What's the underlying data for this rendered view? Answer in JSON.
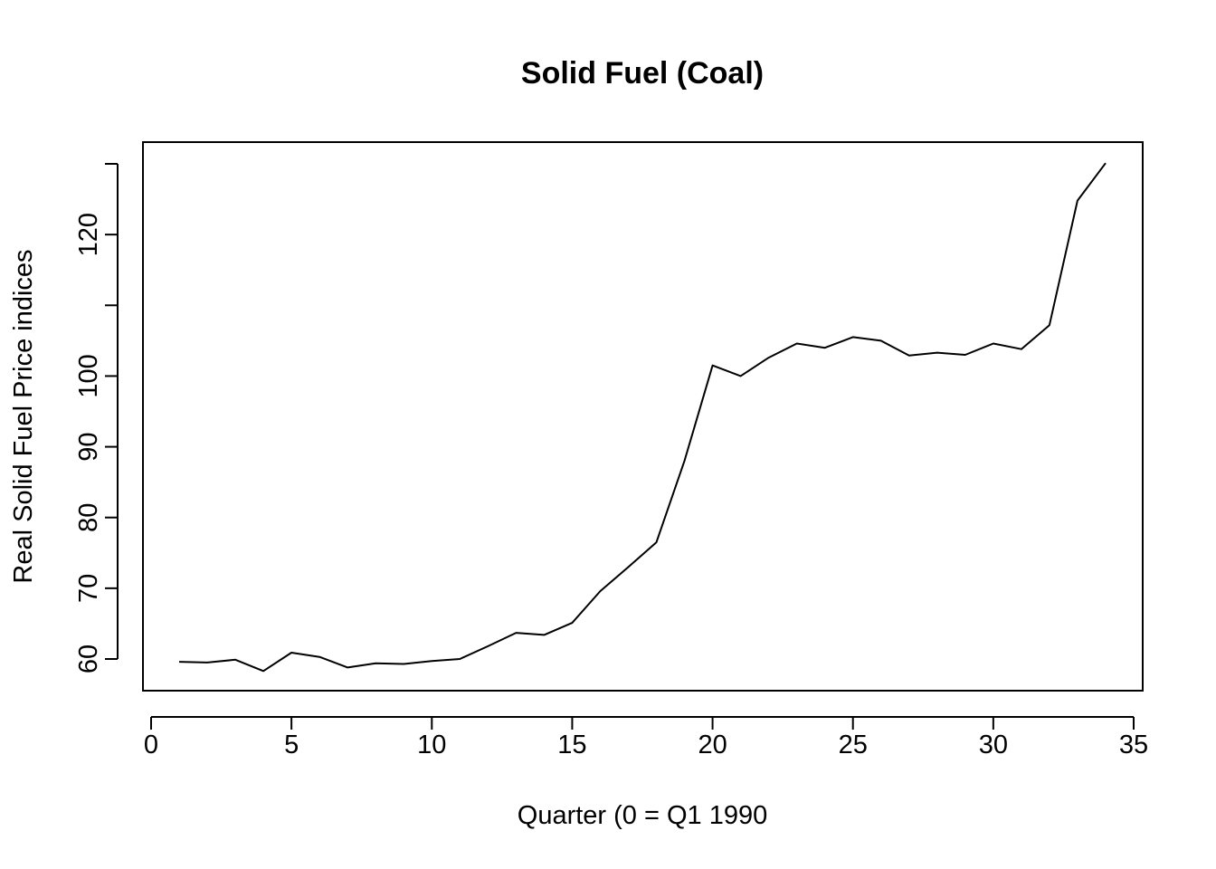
{
  "chart_data": {
    "type": "line",
    "title": "Solid Fuel (Coal)",
    "xlabel": "Quarter (0 = Q1 1990",
    "ylabel": "Real Solid Fuel Price indices",
    "xlim": [
      0,
      35
    ],
    "ylim": [
      55.5,
      133
    ],
    "x_ticks": [
      0,
      5,
      10,
      15,
      20,
      25,
      30,
      35
    ],
    "x_tick_labels": [
      "0",
      "5",
      "10",
      "15",
      "20",
      "25",
      "30",
      "35"
    ],
    "y_ticks": [
      60,
      70,
      80,
      90,
      100,
      110,
      120,
      130
    ],
    "y_tick_labels": [
      "60",
      "70",
      "80",
      "90",
      "100",
      "",
      "120",
      ""
    ],
    "grid": false,
    "series": [
      {
        "color": "#000000",
        "x": [
          1,
          2,
          3,
          4,
          5,
          6,
          7,
          8,
          9,
          10,
          11,
          12,
          13,
          14,
          15,
          16,
          17,
          18,
          19,
          20,
          21,
          22,
          23,
          24,
          25,
          26,
          27,
          28,
          29,
          30,
          31,
          32,
          33,
          34
        ],
        "y": [
          59.6,
          59.5,
          59.9,
          58.3,
          60.9,
          60.3,
          58.8,
          59.4,
          59.3,
          59.7,
          60.0,
          61.8,
          63.7,
          63.4,
          65.1,
          69.6,
          73.0,
          76.5,
          88.0,
          101.5,
          100.0,
          102.6,
          104.6,
          104.0,
          105.5,
          105.0,
          102.9,
          103.3,
          103.0,
          104.6,
          103.8,
          107.2,
          124.8,
          130.1
        ]
      }
    ]
  }
}
